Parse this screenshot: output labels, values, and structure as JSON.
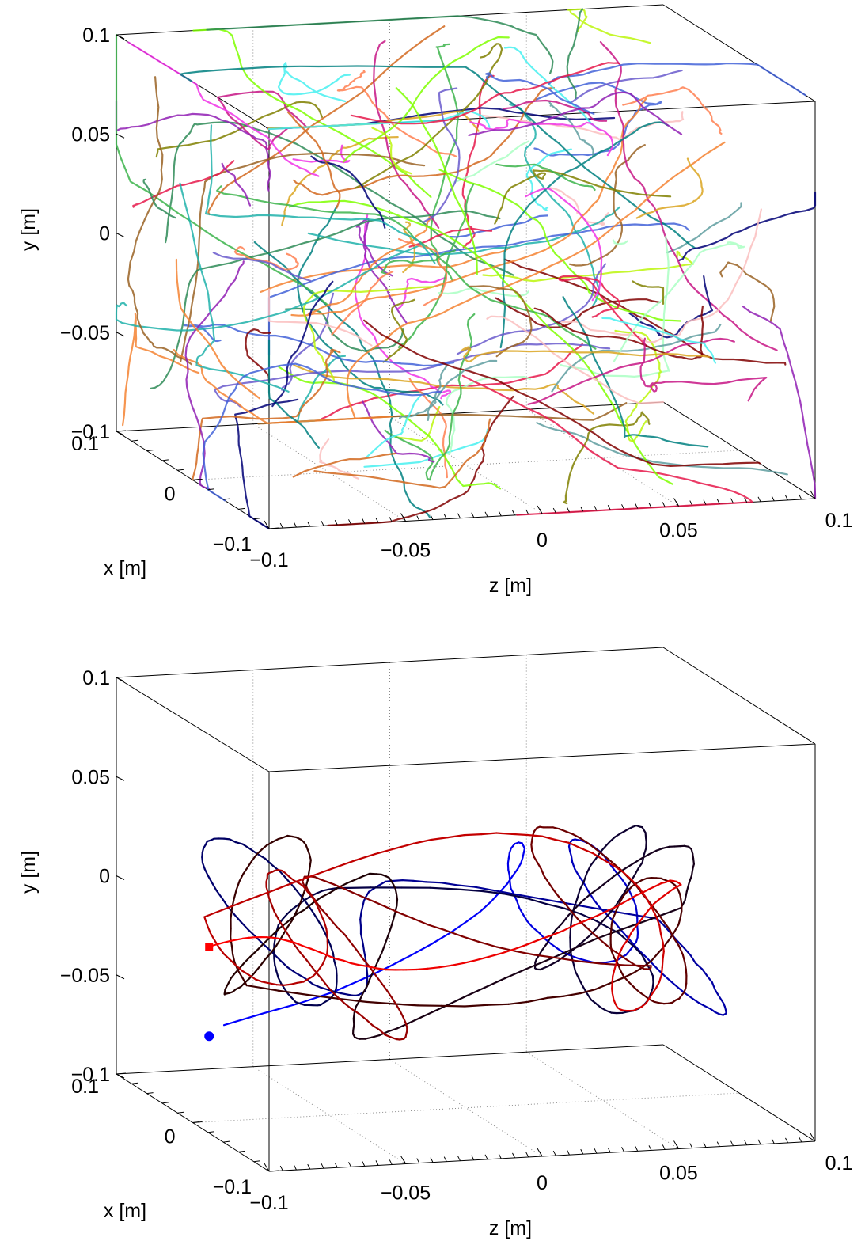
{
  "chart_data": [
    {
      "type": "line",
      "projection": "3d",
      "title": "",
      "xlabel": "x [m]",
      "ylabel": "y [m]",
      "zlabel": "z [m]",
      "xlim": [
        -0.1,
        0.1
      ],
      "ylim": [
        -0.1,
        0.1
      ],
      "zlim": [
        -0.1,
        0.1
      ],
      "x_ticks": [
        "-0.1",
        "0",
        "0.1"
      ],
      "y_ticks": [
        "-0.1",
        "-0.05",
        "0",
        "0.05",
        "0.1"
      ],
      "z_ticks": [
        "-0.1",
        "-0.05",
        "0",
        "0.05",
        "0.1"
      ],
      "grid": "on",
      "legend": "none",
      "description_of_marks": "many short multicolored particle trajectories",
      "series_count": 150
    },
    {
      "type": "line",
      "projection": "3d",
      "title": "",
      "xlabel": "x [m]",
      "ylabel": "y [m]",
      "zlabel": "z [m]",
      "xlim": [
        -0.1,
        0.1
      ],
      "ylim": [
        -0.1,
        0.1
      ],
      "zlim": [
        -0.1,
        0.1
      ],
      "x_ticks": [
        "-0.1",
        "0",
        "0.1"
      ],
      "y_ticks": [
        "-0.1",
        "-0.05",
        "0",
        "0.05",
        "0.1"
      ],
      "z_ticks": [
        "-0.1",
        "-0.05",
        "0",
        "0.05",
        "0.1"
      ],
      "grid": "on",
      "legend": "none",
      "trajectory_start": {
        "x": 0.0,
        "y": -0.057,
        "z": -0.094,
        "marker": "circle",
        "color": "#0000ff"
      },
      "trajectory_end": {
        "x": 0.0,
        "y": -0.012,
        "z": -0.094,
        "marker": "square",
        "color": "#ff0000"
      },
      "trajectory_color_gradient": [
        "#0000ff",
        "#000050",
        "#200000",
        "#8b0000",
        "#ff0000"
      ]
    }
  ]
}
